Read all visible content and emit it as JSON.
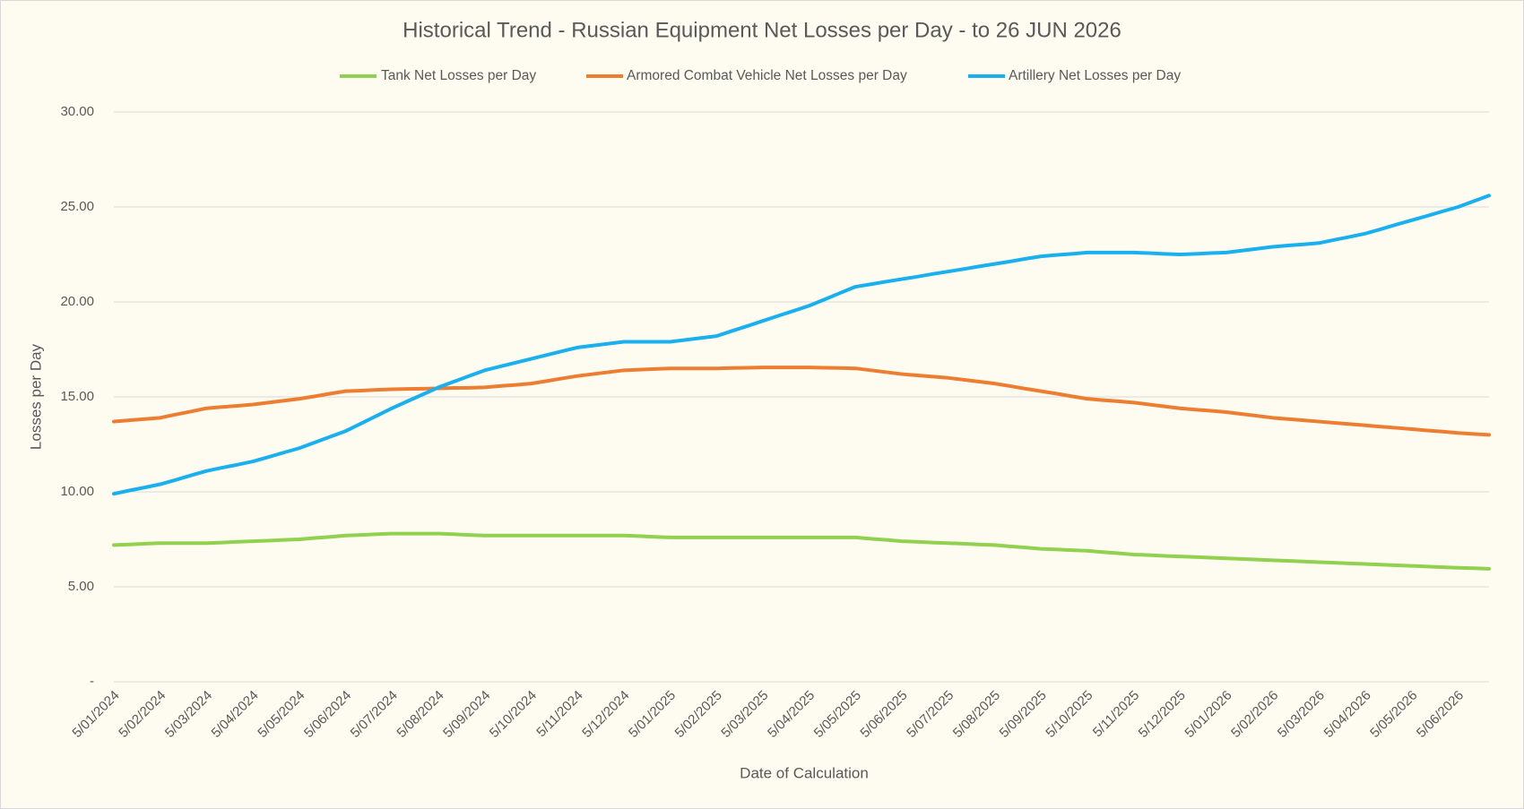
{
  "chart_data": {
    "type": "line",
    "title": "Historical Trend - Russian Equipment Net Losses per Day - to 26 JUN 2026",
    "x_label": "Date of Calculation",
    "y_label": "Losses per Day",
    "categories": [
      "5/01/2024",
      null,
      null,
      "5/02/2024",
      null,
      null,
      "5/03/2024",
      null,
      null,
      "5/04/2024",
      null,
      null,
      "5/05/2024",
      null,
      null,
      "5/06/2024",
      null,
      null,
      "5/07/2024",
      null,
      null,
      "5/08/2024",
      null,
      null,
      "5/09/2024",
      null,
      null,
      "5/10/2024",
      null,
      null,
      "5/11/2024",
      null,
      null,
      "5/12/2024",
      null,
      null,
      "5/01/2025",
      null,
      null,
      "5/02/2025",
      null,
      null,
      "5/03/2025",
      null,
      null,
      "5/04/2025",
      null,
      null,
      "5/05/2025",
      null,
      null,
      "5/06/2025",
      null,
      null,
      "5/07/2025",
      null,
      null,
      "5/08/2025",
      null,
      null,
      "5/09/2025",
      null,
      null,
      "5/10/2025",
      null,
      null,
      "5/11/2025",
      null,
      null,
      "5/12/2025",
      null,
      null,
      "5/01/2026",
      null,
      null,
      "5/02/2026",
      null,
      null,
      "5/03/2026",
      null,
      null,
      "5/04/2026",
      null,
      null,
      "5/05/2026",
      null,
      null,
      "5/06/2026",
      null,
      null
    ],
    "series": [
      {
        "name": "Tank Net Losses per Day",
        "color": "#92d050",
        "values": [
          7.2,
          7.23,
          7.27,
          7.3,
          7.3,
          7.3,
          7.3,
          7.33,
          7.37,
          7.4,
          7.43,
          7.47,
          7.5,
          7.57,
          7.63,
          7.7,
          7.73,
          7.77,
          7.8,
          7.8,
          7.8,
          7.8,
          7.77,
          7.73,
          7.7,
          7.7,
          7.7,
          7.7,
          7.7,
          7.7,
          7.7,
          7.7,
          7.7,
          7.7,
          7.67,
          7.63,
          7.6,
          7.6,
          7.6,
          7.6,
          7.6,
          7.6,
          7.6,
          7.6,
          7.6,
          7.6,
          7.6,
          7.6,
          7.6,
          7.53,
          7.47,
          7.4,
          7.37,
          7.33,
          7.3,
          7.27,
          7.23,
          7.2,
          7.13,
          7.07,
          7.0,
          6.97,
          6.93,
          6.9,
          6.83,
          6.77,
          6.7,
          6.67,
          6.63,
          6.6,
          6.57,
          6.53,
          6.5,
          6.47,
          6.43,
          6.4,
          6.37,
          6.33,
          6.3,
          6.27,
          6.23,
          6.2,
          6.17,
          6.13,
          6.1,
          6.07,
          6.03,
          6.0,
          5.98,
          5.95
        ]
      },
      {
        "name": "Armored Combat Vehicle Net Losses per Day",
        "color": "#ed7d31",
        "values": [
          13.7,
          13.77,
          13.83,
          13.9,
          14.07,
          14.23,
          14.4,
          14.47,
          14.53,
          14.6,
          14.7,
          14.8,
          14.9,
          15.03,
          15.17,
          15.3,
          15.33,
          15.37,
          15.4,
          15.42,
          15.43,
          15.45,
          15.47,
          15.48,
          15.5,
          15.57,
          15.63,
          15.7,
          15.83,
          15.97,
          16.1,
          16.2,
          16.3,
          16.4,
          16.43,
          16.47,
          16.5,
          16.5,
          16.5,
          16.5,
          16.52,
          16.53,
          16.55,
          16.55,
          16.55,
          16.55,
          16.53,
          16.52,
          16.5,
          16.4,
          16.3,
          16.2,
          16.13,
          16.07,
          16.0,
          15.9,
          15.8,
          15.7,
          15.57,
          15.43,
          15.3,
          15.17,
          15.03,
          14.9,
          14.83,
          14.77,
          14.7,
          14.6,
          14.5,
          14.4,
          14.33,
          14.27,
          14.2,
          14.1,
          14.0,
          13.9,
          13.83,
          13.77,
          13.7,
          13.63,
          13.57,
          13.5,
          13.43,
          13.37,
          13.3,
          13.23,
          13.17,
          13.1,
          13.05,
          13.0
        ]
      },
      {
        "name": "Artillery Net Losses per Day",
        "color": "#1ab0ee",
        "values": [
          9.9,
          10.07,
          10.23,
          10.4,
          10.63,
          10.87,
          11.1,
          11.27,
          11.43,
          11.6,
          11.83,
          12.07,
          12.3,
          12.6,
          12.9,
          13.2,
          13.6,
          14.0,
          14.4,
          14.77,
          15.13,
          15.5,
          15.8,
          16.1,
          16.4,
          16.6,
          16.8,
          17.0,
          17.2,
          17.4,
          17.6,
          17.7,
          17.8,
          17.9,
          17.9,
          17.9,
          17.9,
          18.0,
          18.1,
          18.2,
          18.47,
          18.73,
          19.0,
          19.27,
          19.53,
          19.8,
          20.13,
          20.47,
          20.8,
          20.93,
          21.07,
          21.2,
          21.33,
          21.47,
          21.6,
          21.73,
          21.87,
          22.0,
          22.13,
          22.27,
          22.4,
          22.47,
          22.53,
          22.6,
          22.6,
          22.6,
          22.6,
          22.57,
          22.53,
          22.5,
          22.53,
          22.57,
          22.6,
          22.7,
          22.8,
          22.9,
          22.97,
          23.03,
          23.1,
          23.27,
          23.43,
          23.6,
          23.83,
          24.07,
          24.3,
          24.53,
          24.77,
          25.0,
          25.3,
          25.6
        ]
      }
    ],
    "ylim": [
      0,
      30
    ],
    "yticks": [
      {
        "value": 0,
        "label": "-"
      },
      {
        "value": 5,
        "label": "5.00"
      },
      {
        "value": 10,
        "label": "10.00"
      },
      {
        "value": 15,
        "label": "15.00"
      },
      {
        "value": 20,
        "label": "20.00"
      },
      {
        "value": 25,
        "label": "25.00"
      },
      {
        "value": 30,
        "label": "30.00"
      }
    ],
    "grid": true,
    "legend": "top"
  }
}
